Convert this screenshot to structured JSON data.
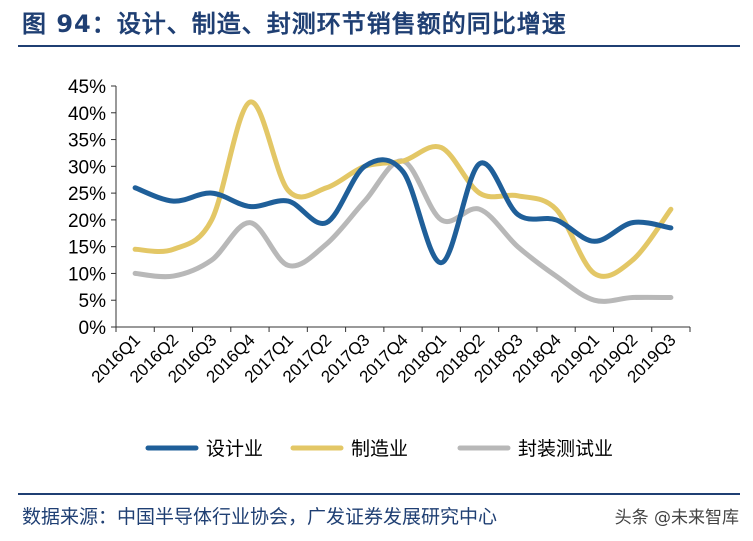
{
  "figure": {
    "title": "图 94：设计、制造、封测环节销售额的同比增速",
    "source": "数据来源：中国半导体行业协会，广发证券发展研究中心",
    "watermark": "头条 @未来智库"
  },
  "chart_data": {
    "type": "line",
    "title": "",
    "xlabel": "",
    "ylabel": "",
    "categories": [
      "2016Q1",
      "2016Q2",
      "2016Q3",
      "2016Q4",
      "2017Q1",
      "2017Q2",
      "2017Q3",
      "2017Q4",
      "2018Q1",
      "2018Q2",
      "2018Q3",
      "2018Q4",
      "2019Q1",
      "2019Q2",
      "2019Q3"
    ],
    "ylim": [
      0,
      45
    ],
    "yticks": [
      "0%",
      "5%",
      "10%",
      "15%",
      "20%",
      "25%",
      "30%",
      "35%",
      "40%",
      "45%"
    ],
    "grid": false,
    "legend": "bottom",
    "smooth": true,
    "series": [
      {
        "name": "设计业",
        "color": "#1f5f99",
        "values": [
          26,
          23.5,
          25,
          22.5,
          23.5,
          19.5,
          30,
          29,
          12,
          30.5,
          21,
          20,
          16,
          19.5,
          18.5
        ]
      },
      {
        "name": "制造业",
        "color": "#e3c766",
        "values": [
          14.5,
          14.5,
          20,
          42,
          25.5,
          26,
          30,
          31,
          33.5,
          25,
          24.5,
          22,
          10,
          12.5,
          22
        ]
      },
      {
        "name": "封装测试业",
        "color": "#b8b8b8",
        "values": [
          10,
          9.5,
          12.5,
          19.5,
          11.5,
          15.5,
          23.5,
          31,
          20,
          22,
          15,
          9.5,
          5,
          5.5,
          5.5
        ]
      }
    ]
  }
}
